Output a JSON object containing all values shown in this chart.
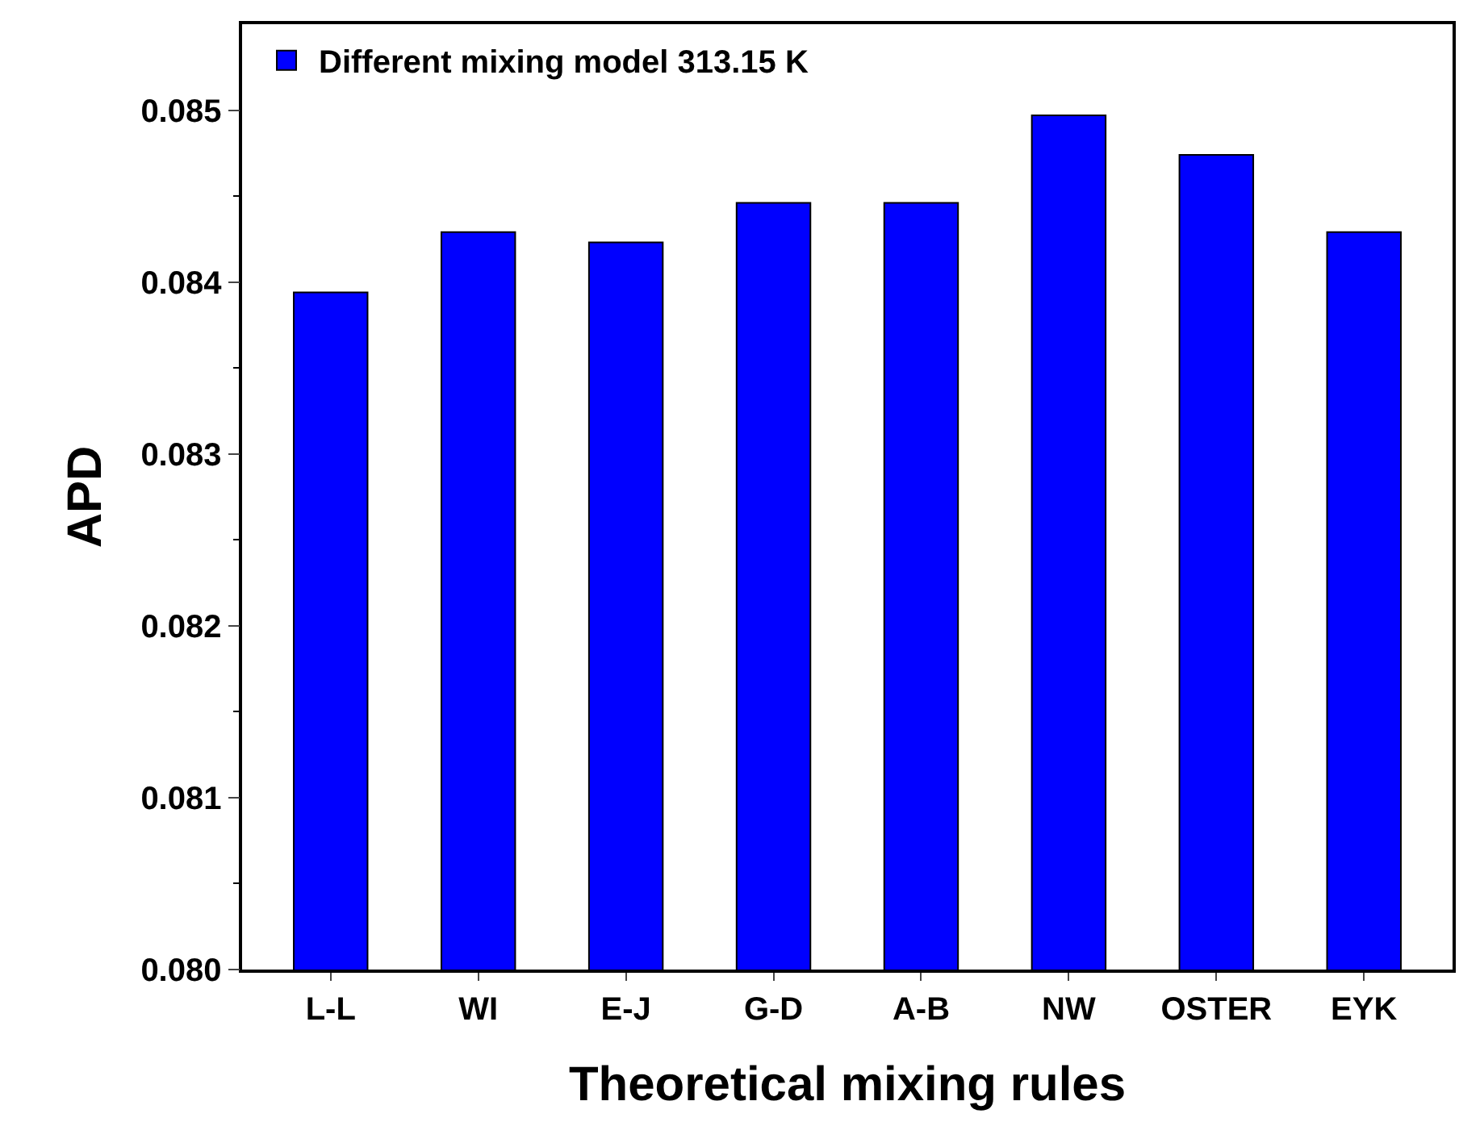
{
  "chart_data": {
    "type": "bar",
    "xlabel": "Theoretical mixing rules",
    "ylabel": "APD",
    "categories": [
      "L-L",
      "WI",
      "E-J",
      "G-D",
      "A-B",
      "NW",
      "OSTER",
      "EYK"
    ],
    "series": [
      {
        "name": "Different mixing model 313.15 K",
        "color": "#0000ff",
        "values": [
          0.08394,
          0.08429,
          0.08423,
          0.08446,
          0.08446,
          0.08497,
          0.08474,
          0.08429
        ]
      }
    ],
    "ylim": [
      0.08,
      0.0855
    ],
    "yticks": [
      {
        "value": 0.08,
        "label": "0.080"
      },
      0.081,
      0.082,
      0.083,
      0.084,
      0.085
    ],
    "legend": "top left"
  }
}
